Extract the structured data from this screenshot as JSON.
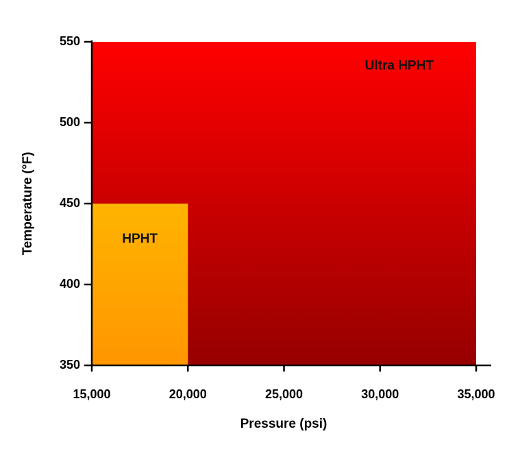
{
  "chart_data": {
    "type": "area",
    "xlabel": "Pressure (psi)",
    "ylabel": "Temperature (°F)",
    "xlim": [
      15000,
      35000
    ],
    "ylim": [
      350,
      550
    ],
    "x_ticks": [
      15000,
      20000,
      25000,
      30000,
      35000
    ],
    "x_tick_labels": [
      "15,000",
      "20,000",
      "25,000",
      "30,000",
      "35,000"
    ],
    "y_ticks": [
      350,
      400,
      450,
      500,
      550
    ],
    "y_tick_labels": [
      "350",
      "400",
      "450",
      "500",
      "550"
    ],
    "grid": false,
    "regions": [
      {
        "name": "Ultra HPHT",
        "x_range": [
          15000,
          35000
        ],
        "y_range": [
          350,
          550
        ],
        "label_at": [
          31000,
          535
        ],
        "colors": {
          "top": "#ff0000",
          "bottom": "#960000"
        }
      },
      {
        "name": "HPHT",
        "x_range": [
          15000,
          20000
        ],
        "y_range": [
          350,
          450
        ],
        "label_at": [
          17500,
          428
        ],
        "colors": {
          "top": "#ffb400",
          "bottom": "#ff9600"
        }
      }
    ]
  }
}
